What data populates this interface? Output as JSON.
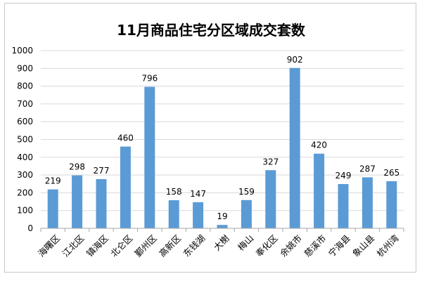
{
  "chart_data": {
    "type": "bar",
    "title": "11月商品住宅分区域成交套数",
    "categories": [
      "海曙区",
      "江北区",
      "镇海区",
      "北仑区",
      "鄞州区",
      "高新区",
      "东钱湖",
      "大榭",
      "梅山",
      "奉化区",
      "余姚市",
      "慈溪市",
      "宁海县",
      "象山县",
      "杭州湾"
    ],
    "values": [
      219,
      298,
      277,
      460,
      796,
      158,
      147,
      19,
      159,
      327,
      902,
      420,
      249,
      287,
      265
    ],
    "ylim": [
      0,
      1000
    ],
    "yticks": [
      "0",
      "100",
      "200",
      "300",
      "400",
      "500",
      "600",
      "700",
      "800",
      "900",
      "1000"
    ],
    "grid": true,
    "legend": "none",
    "bar_color": "#5b9bd5",
    "xlabel": "",
    "ylabel": ""
  }
}
